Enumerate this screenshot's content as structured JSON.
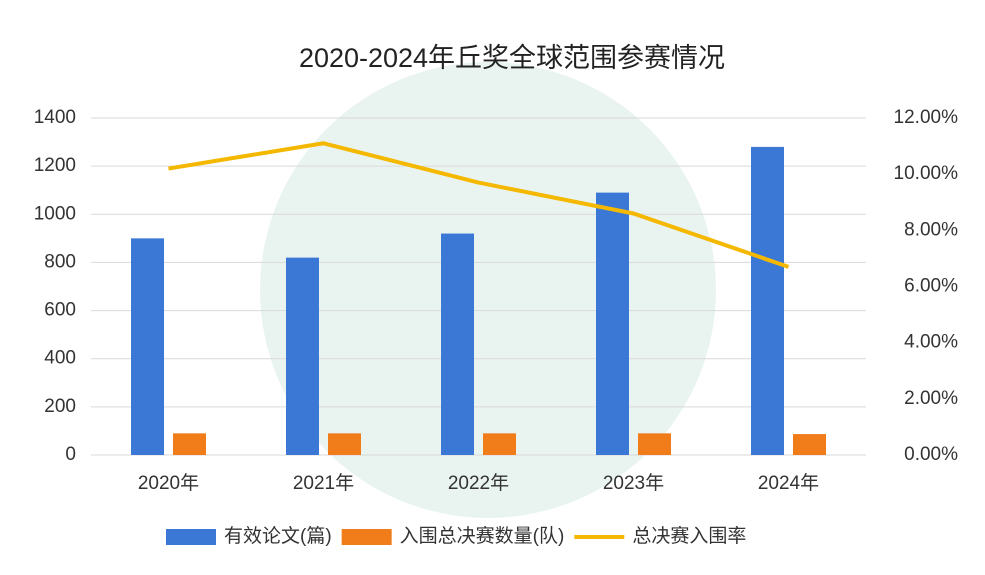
{
  "chart_data": {
    "type": "bar_line",
    "title": "2020-2024年丘奖全球范围参赛情况",
    "categories": [
      "2020年",
      "2021年",
      "2022年",
      "2023年",
      "2024年"
    ],
    "series": [
      {
        "name": "有效论文(篇)",
        "type": "bar",
        "color": "#3b78d6",
        "values": [
          900,
          820,
          920,
          1090,
          1280
        ]
      },
      {
        "name": "入围总决赛数量(队)",
        "type": "bar",
        "color": "#f07d1a",
        "values": [
          90,
          90,
          90,
          90,
          87
        ]
      },
      {
        "name": "总决赛入围率",
        "type": "line",
        "axis": "y2",
        "color": "#f5b800",
        "values": [
          10.2,
          11.1,
          9.7,
          8.6,
          6.7
        ]
      }
    ],
    "ylim": [
      0,
      1400
    ],
    "yticks": [
      0,
      200,
      400,
      600,
      800,
      1000,
      1200,
      1400
    ],
    "y2lim": [
      0,
      12
    ],
    "y2ticks": [
      {
        "value": 0,
        "label": "0.00%"
      },
      {
        "value": 2,
        "label": "2.00%"
      },
      {
        "value": 4,
        "label": "4.00%"
      },
      {
        "value": 6,
        "label": "6.00%"
      },
      {
        "value": 8,
        "label": "8.00%"
      },
      {
        "value": 10,
        "label": "10.00%"
      },
      {
        "value": 12,
        "label": "12.00%"
      }
    ],
    "grid": true,
    "legend": "bottom"
  }
}
